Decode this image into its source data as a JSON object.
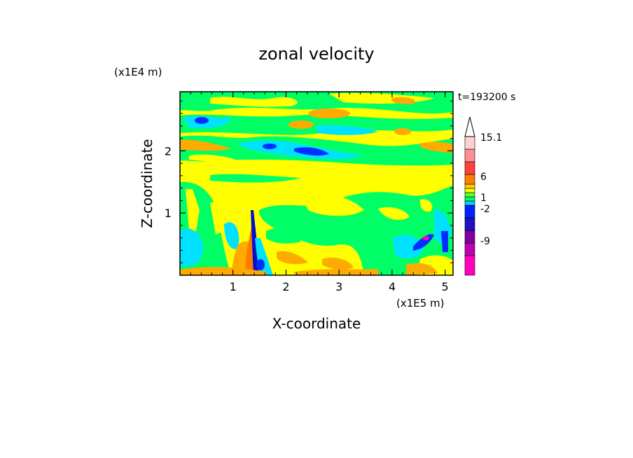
{
  "chart_data": {
    "type": "heatmap",
    "title": "zonal velocity",
    "xlabel": "X-coordinate",
    "ylabel": "Z-coordinate",
    "x_unit": "(x1E5 m)",
    "y_unit": "(x1E4 m)",
    "time_label": "t=193200 s",
    "xlim": [
      0,
      5.15
    ],
    "ylim": [
      0,
      2.95
    ],
    "x_ticks": [
      1,
      2,
      3,
      4,
      5
    ],
    "y_ticks": [
      1,
      2
    ],
    "x_tick_labels": [
      "1",
      "2",
      "3",
      "4",
      "5"
    ],
    "y_tick_labels": [
      "1",
      "2"
    ],
    "colorbar": {
      "levels": [
        "15.1",
        "6",
        "1",
        "-2",
        "-9"
      ],
      "level_values": [
        15.1,
        6,
        1,
        -2,
        -9
      ],
      "colors_bottom_to_top": [
        "#ff00c0",
        "#c000b0",
        "#8000a0",
        "#2010c0",
        "#0020ff",
        "#00d0ff",
        "#00ff60",
        "#60ff30",
        "#ffff00",
        "#ffd000",
        "#ff8000",
        "#ff4040",
        "#ff9090",
        "#ffd0d0"
      ]
    },
    "field_colors": {
      "magenta": "#ff00c0",
      "dark_blue": "#0010d0",
      "blue": "#0030ff",
      "cyan": "#00e0ff",
      "green": "#00ff66",
      "light_green": "#90ff30",
      "yellow": "#ffff00",
      "orange": "#ffaa00",
      "red_orange": "#ff7a00"
    }
  }
}
